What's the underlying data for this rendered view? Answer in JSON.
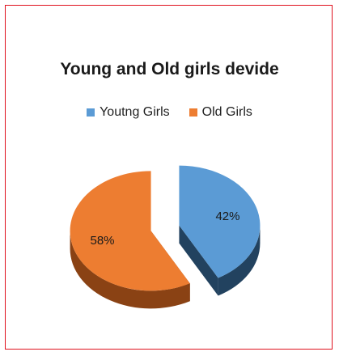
{
  "chart_data": {
    "type": "pie",
    "title": "Young and Old girls devide",
    "legend_position": "top",
    "categories": [
      "Youtng Girls",
      "Old Girls"
    ],
    "values": [
      42,
      58
    ],
    "labels": [
      "42%",
      "58%"
    ],
    "colors": [
      "#5b9bd5",
      "#ed7d31"
    ],
    "side_colors": [
      "#22425f",
      "#8a4214"
    ],
    "style": "3d-exploded"
  }
}
